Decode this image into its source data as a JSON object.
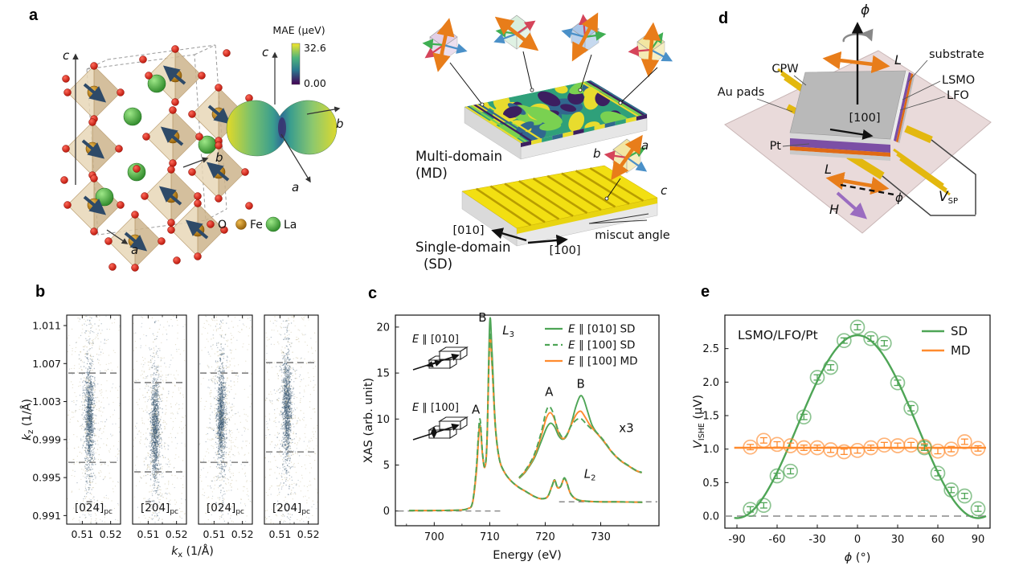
{
  "panel_labels": {
    "a": "a",
    "b": "b",
    "c": "c",
    "d": "d",
    "e": "e"
  },
  "colors": {
    "green": "#4ea556",
    "green_light": "#7cc27f",
    "orange": "#ff8b2e",
    "gray_dash": "#888888",
    "scatter_dark": "#3b5a73",
    "scatter_light": "#c6bc96",
    "viridis_yellow": "#e8dc2e",
    "viridis_green": "#2fa07a",
    "viridis_teal": "#31688e",
    "viridis_purple": "#3c1f60",
    "viridis_lightgreen": "#7ad151",
    "atom_O": "#e3241b",
    "atom_Fe": "#c0821a",
    "atom_La": "#55bb4d",
    "polyhedron": "#dcc6a0",
    "spin": "#2e4a68",
    "board_pink": "#e9dada",
    "gold": "#e3b80f",
    "substrate_gray": "#b9b9b9",
    "lsmo_purple": "#7b4fa5",
    "lfo_orange": "#e06a14",
    "pt_gray": "#c9c9c9",
    "H_purple": "#9a6cc0",
    "L_orange": "#e87d1a"
  },
  "panel_a": {
    "colorbar_title": "MAE (μeV)",
    "colorbar_max": "32.6",
    "colorbar_min": "0.00",
    "crystal_axes": {
      "a": "a",
      "b": "b",
      "c": "c"
    },
    "mae_axes": {
      "a": "a",
      "b": "b",
      "c": "c"
    },
    "legend": [
      {
        "label": "O"
      },
      {
        "label": "Fe"
      },
      {
        "label": "La"
      }
    ]
  },
  "panel_md": {
    "md_line1": "Multi-domain",
    "md_line2": "(MD)",
    "sd_line1": "Single-domain",
    "sd_line2": "(SD)",
    "dir_010": "[010]",
    "dir_100": "[100]",
    "miscut": "miscut angle",
    "cube_b": "b",
    "cube_a": "a",
    "cube_c": "c"
  },
  "panel_d": {
    "phi_top": "ϕ",
    "L_top": "L",
    "substrate": "substrate",
    "lsmo": "LSMO",
    "lfo": "LFO",
    "cpw": "CPW",
    "au_pads": "Au pads",
    "pt": "Pt",
    "dir_100": "[100]",
    "L_bot": "L",
    "phi_bot": "ϕ",
    "H": "H",
    "v_main": "V",
    "v_sub": "SP"
  },
  "chart_data": [
    {
      "id": "panel_b",
      "type": "scatter",
      "ylabel": {
        "main": "k",
        "sub": "z",
        "rest": " (1/Å)"
      },
      "xlabel": {
        "main": "k",
        "sub": "x",
        "rest": " (1/Å)"
      },
      "yticks": [
        0.991,
        0.995,
        0.999,
        1.003,
        1.007,
        1.011
      ],
      "xticks": [
        0.51,
        0.52
      ],
      "xlim": [
        0.5045,
        0.5235
      ],
      "ylim": [
        0.9901,
        1.0121
      ],
      "subpanels": [
        {
          "label": "[02̅4]",
          "label_sub": "pc",
          "dash_top": 1.006,
          "dash_bottom": 0.9966,
          "center_kx": 0.5125,
          "center_kz": 1.0013
        },
        {
          "label": "[2̅04]",
          "label_sub": "pc",
          "dash_top": 1.005,
          "dash_bottom": 0.9956,
          "center_kx": 0.5125,
          "center_kz": 1.0002
        },
        {
          "label": "[024]",
          "label_sub": "pc",
          "dash_top": 1.006,
          "dash_bottom": 0.9966,
          "center_kx": 0.5125,
          "center_kz": 1.0013
        },
        {
          "label": "[204]",
          "label_sub": "pc",
          "dash_top": 1.0071,
          "dash_bottom": 0.9977,
          "center_kx": 0.5125,
          "center_kz": 1.0024
        }
      ],
      "cluster": {
        "n_dense": 900,
        "sigma_x": 0.00075,
        "sigma_z": 0.0026,
        "n_tail": 160,
        "tail_sigma_z": 0.0063,
        "n_mid": 320,
        "mid_sigma_x": 0.0023,
        "mid_sigma_z": 0.0063,
        "n_sparse": 300
      }
    },
    {
      "id": "panel_c",
      "type": "line",
      "xlabel": "Energy (eV)",
      "ylabel": "XAS (arb. unit)",
      "xlim": [
        693,
        740.5
      ],
      "ylim": [
        -1.6,
        21.3
      ],
      "xticks": [
        700,
        710,
        720,
        730
      ],
      "yticks": [
        0,
        5,
        10,
        15,
        20
      ],
      "legend": [
        {
          "e": "E",
          "rest": " ∥ [010] SD",
          "style": "solid",
          "color": "green"
        },
        {
          "e": "E",
          "rest": " ∥ [100] SD",
          "style": "dashed",
          "color": "green"
        },
        {
          "e": "E",
          "rest": " ∥ [100] MD",
          "style": "solid",
          "color": "orange"
        }
      ],
      "annotations": {
        "peak_a": "A",
        "peak_b": "B",
        "l3_main": "L",
        "l3_sub": "3",
        "inset_a": "A",
        "inset_b": "B",
        "scale": "x3",
        "l2_main": "L",
        "l2_sub": "2",
        "icon1_e": "E",
        "icon1_rest": " ∥ [010]",
        "icon2_e": "E",
        "icon2_rest": " ∥ [100]"
      },
      "dashes": [
        {
          "y": 0,
          "x1": 693.5,
          "x2": 712.2
        },
        {
          "y": 1.0,
          "x1": 722.5,
          "x2": 740.2
        }
      ],
      "series": [
        {
          "name": "E||[010] SD main",
          "color": "green",
          "style": "solid",
          "points": [
            [
              695.5,
              0.05
            ],
            [
              699,
              0.05
            ],
            [
              702,
              0.07
            ],
            [
              704.5,
              0.1
            ],
            [
              706,
              0.25
            ],
            [
              706.9,
              0.9
            ],
            [
              707.6,
              4.5
            ],
            [
              708.2,
              9.4
            ],
            [
              708.7,
              6.2
            ],
            [
              709.1,
              4.8
            ],
            [
              709.5,
              7.5
            ],
            [
              710.0,
              20.5
            ],
            [
              710.4,
              17.5
            ],
            [
              711.0,
              9.5
            ],
            [
              711.7,
              5.8
            ],
            [
              712.6,
              4.3
            ],
            [
              713.8,
              3.3
            ],
            [
              715.2,
              2.6
            ],
            [
              716.6,
              2.1
            ],
            [
              718.0,
              1.6
            ],
            [
              719.2,
              1.35
            ],
            [
              720.4,
              1.55
            ],
            [
              721.2,
              2.7
            ],
            [
              721.7,
              3.4
            ],
            [
              722.2,
              2.6
            ],
            [
              722.8,
              2.7
            ],
            [
              723.4,
              3.6
            ],
            [
              723.9,
              3.1
            ],
            [
              724.5,
              2.0
            ],
            [
              725.3,
              1.4
            ],
            [
              726.3,
              1.15
            ],
            [
              728,
              1.05
            ],
            [
              730,
              1.0
            ],
            [
              733,
              1.0
            ],
            [
              735,
              0.98
            ],
            [
              737.5,
              0.95
            ]
          ]
        },
        {
          "name": "E||[100] MD main",
          "color": "orange",
          "style": "solid",
          "points": [
            [
              695.5,
              0.05
            ],
            [
              699,
              0.05
            ],
            [
              702,
              0.07
            ],
            [
              704.5,
              0.1
            ],
            [
              706,
              0.25
            ],
            [
              706.9,
              0.85
            ],
            [
              707.6,
              4.2
            ],
            [
              708.2,
              9.2
            ],
            [
              708.7,
              6.1
            ],
            [
              709.1,
              4.75
            ],
            [
              709.5,
              7.3
            ],
            [
              710.0,
              18.6
            ],
            [
              710.4,
              16.0
            ],
            [
              711.0,
              9.2
            ],
            [
              711.7,
              5.7
            ],
            [
              712.6,
              4.25
            ],
            [
              713.8,
              3.28
            ],
            [
              715.2,
              2.58
            ],
            [
              716.6,
              2.08
            ],
            [
              718.0,
              1.58
            ],
            [
              719.2,
              1.33
            ],
            [
              720.4,
              1.52
            ],
            [
              721.2,
              2.65
            ],
            [
              721.7,
              3.32
            ],
            [
              722.2,
              2.55
            ],
            [
              722.8,
              2.66
            ],
            [
              723.4,
              3.52
            ],
            [
              723.9,
              3.05
            ],
            [
              724.5,
              1.95
            ],
            [
              725.3,
              1.38
            ],
            [
              726.3,
              1.14
            ],
            [
              728,
              1.04
            ],
            [
              730,
              1.0
            ],
            [
              733,
              1.0
            ],
            [
              735,
              0.98
            ],
            [
              737.5,
              0.95
            ]
          ]
        },
        {
          "name": "E||[100] SD main",
          "color": "green",
          "style": "dashed",
          "points": [
            [
              695.5,
              0.05
            ],
            [
              699,
              0.05
            ],
            [
              702,
              0.07
            ],
            [
              704.5,
              0.1
            ],
            [
              706,
              0.25
            ],
            [
              706.9,
              0.95
            ],
            [
              707.6,
              4.8
            ],
            [
              708.2,
              10.0
            ],
            [
              708.7,
              6.3
            ],
            [
              709.1,
              4.85
            ],
            [
              709.5,
              7.6
            ],
            [
              710.0,
              19.0
            ],
            [
              710.4,
              16.4
            ],
            [
              711.0,
              9.3
            ],
            [
              711.7,
              5.75
            ],
            [
              712.6,
              4.28
            ],
            [
              713.8,
              3.3
            ],
            [
              715.2,
              2.59
            ],
            [
              716.6,
              2.09
            ],
            [
              718.0,
              1.59
            ],
            [
              719.2,
              1.34
            ],
            [
              720.4,
              1.53
            ],
            [
              721.2,
              2.67
            ],
            [
              721.7,
              3.35
            ],
            [
              722.2,
              2.57
            ],
            [
              722.8,
              2.68
            ],
            [
              723.4,
              3.55
            ],
            [
              723.9,
              3.07
            ],
            [
              724.5,
              1.97
            ],
            [
              725.3,
              1.39
            ],
            [
              726.3,
              1.14
            ],
            [
              728,
              1.04
            ],
            [
              730,
              1.0
            ],
            [
              733,
              1.0
            ],
            [
              735,
              0.98
            ],
            [
              737.5,
              0.95
            ]
          ]
        },
        {
          "name": "E||[010] SD inset x3",
          "color": "green",
          "style": "solid",
          "points": [
            [
              715.3,
              3.55
            ],
            [
              716.5,
              4.3
            ],
            [
              718,
              5.7
            ],
            [
              719.3,
              7.6
            ],
            [
              720.3,
              9.1
            ],
            [
              721.0,
              9.55
            ],
            [
              721.7,
              9.15
            ],
            [
              722.4,
              8.2
            ],
            [
              723.1,
              7.8
            ],
            [
              723.8,
              8.1
            ],
            [
              724.6,
              9.3
            ],
            [
              725.5,
              11.3
            ],
            [
              726.3,
              12.5
            ],
            [
              726.9,
              12.2
            ],
            [
              727.6,
              10.9
            ],
            [
              728.4,
              9.4
            ],
            [
              729.3,
              8.5
            ],
            [
              730.5,
              7.6
            ],
            [
              732,
              6.4
            ],
            [
              733.5,
              5.5
            ],
            [
              735,
              4.9
            ],
            [
              736.3,
              4.4
            ],
            [
              737.4,
              4.15
            ]
          ]
        },
        {
          "name": "E||[100] MD inset x3",
          "color": "orange",
          "style": "solid",
          "points": [
            [
              715.3,
              3.6
            ],
            [
              716.5,
              4.4
            ],
            [
              718,
              5.9
            ],
            [
              719.3,
              8.2
            ],
            [
              720.2,
              10.1
            ],
            [
              720.9,
              10.7
            ],
            [
              721.6,
              10.1
            ],
            [
              722.3,
              8.7
            ],
            [
              723.1,
              7.9
            ],
            [
              723.8,
              8.15
            ],
            [
              724.6,
              9.25
            ],
            [
              725.6,
              10.5
            ],
            [
              726.4,
              10.85
            ],
            [
              727.1,
              10.3
            ],
            [
              728.0,
              9.4
            ],
            [
              729.0,
              8.65
            ],
            [
              730.5,
              7.65
            ],
            [
              732,
              6.42
            ],
            [
              733.5,
              5.52
            ],
            [
              735,
              4.92
            ],
            [
              736.3,
              4.42
            ],
            [
              737.4,
              4.18
            ]
          ]
        },
        {
          "name": "E||[100] SD inset x3",
          "color": "green",
          "style": "dashed",
          "points": [
            [
              715.3,
              3.65
            ],
            [
              716.5,
              4.5
            ],
            [
              718,
              6.1
            ],
            [
              719.3,
              8.6
            ],
            [
              720.1,
              10.7
            ],
            [
              720.7,
              11.35
            ],
            [
              721.4,
              10.7
            ],
            [
              722.2,
              9.0
            ],
            [
              723.1,
              8.0
            ],
            [
              723.8,
              8.2
            ],
            [
              724.6,
              9.2
            ],
            [
              725.6,
              9.9
            ],
            [
              726.4,
              10.05
            ],
            [
              727.2,
              9.6
            ],
            [
              728.2,
              9.0
            ],
            [
              729.0,
              8.7
            ],
            [
              730.5,
              7.7
            ],
            [
              732,
              6.45
            ],
            [
              733.5,
              5.55
            ],
            [
              735,
              4.95
            ],
            [
              736.3,
              4.45
            ],
            [
              737.4,
              4.2
            ]
          ]
        }
      ]
    },
    {
      "id": "panel_e",
      "type": "scatter-line",
      "sample_label": "LSMO/LFO/Pt",
      "xlabel": {
        "main": "ϕ",
        "rest": " (°)"
      },
      "ylabel": {
        "main": "V",
        "sub": "ISHE",
        "rest": " (μV)"
      },
      "xlim": [
        -99,
        99
      ],
      "ylim": [
        -0.18,
        3.0
      ],
      "xticks": [
        -90,
        -60,
        -30,
        0,
        30,
        60,
        90
      ],
      "yticks": [
        0.0,
        0.5,
        1.0,
        1.5,
        2.0,
        2.5
      ],
      "legend": [
        {
          "label": "SD",
          "color": "green"
        },
        {
          "label": "MD",
          "color": "orange"
        }
      ],
      "phi": [
        -80,
        -70,
        -60,
        -50,
        -40,
        -30,
        -20,
        -10,
        0,
        10,
        20,
        30,
        40,
        50,
        60,
        70,
        80,
        90
      ],
      "sd_values": [
        0.1,
        0.16,
        0.6,
        0.67,
        1.48,
        2.07,
        2.22,
        2.62,
        2.82,
        2.65,
        2.58,
        1.99,
        1.61,
        1.02,
        0.64,
        0.39,
        0.3,
        0.11
      ],
      "md_values": [
        1.03,
        1.13,
        1.07,
        1.05,
        1.02,
        1.02,
        0.99,
        0.96,
        0.98,
        1.02,
        1.06,
        1.05,
        1.06,
        1.04,
        0.97,
        1.0,
        1.11,
        1.01
      ],
      "error": 0.04,
      "sd_fit": {
        "amplitude": 2.73,
        "offset": -0.03
      },
      "md_fit": {
        "level": 1.02
      },
      "dash_y": 0.0
    }
  ]
}
